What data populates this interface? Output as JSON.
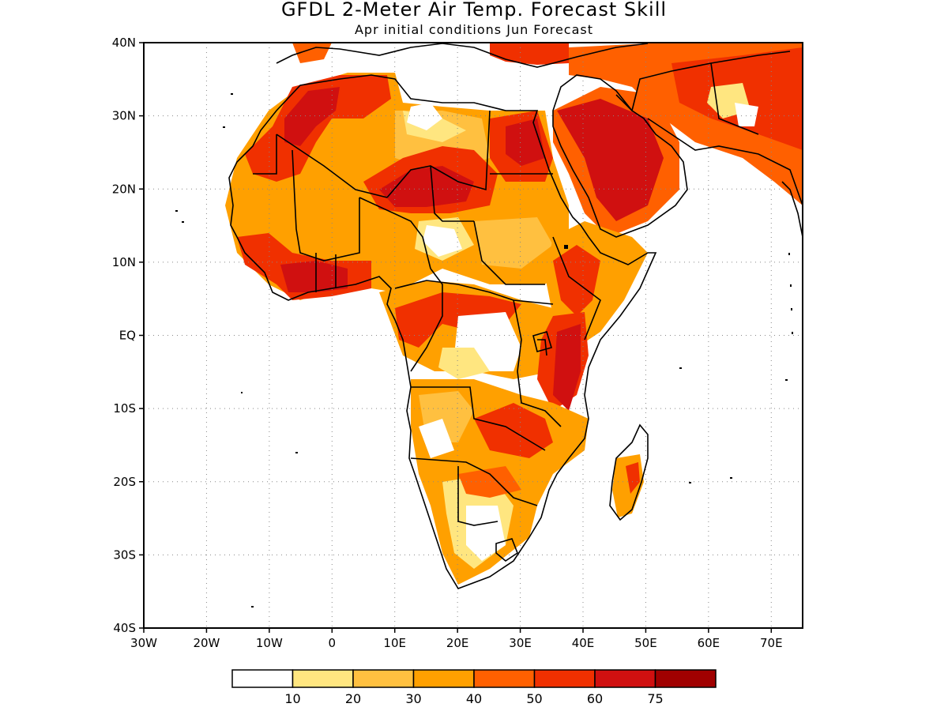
{
  "title": "GFDL 2-Meter Air Temp. Forecast Skill",
  "subtitle": "Apr initial conditions  Jun Forecast",
  "map": {
    "projection": "lat-lon",
    "lon_range": [
      -30,
      75
    ],
    "lat_range": [
      -40,
      40
    ],
    "grid": "dotted",
    "y_ticks": [
      "40N",
      "30N",
      "20N",
      "10N",
      "EQ",
      "10S",
      "20S",
      "30S",
      "40S"
    ],
    "x_ticks": [
      "30W",
      "20W",
      "10W",
      "0",
      "10E",
      "20E",
      "30E",
      "40E",
      "50E",
      "60E",
      "70E"
    ]
  },
  "colorbar": {
    "labels": [
      "10",
      "20",
      "30",
      "40",
      "50",
      "60",
      "75"
    ],
    "colors": [
      "#ffffff",
      "#ffe680",
      "#ffc040",
      "#ffa000",
      "#ff6000",
      "#f03000",
      "#d01010",
      "#a00000"
    ]
  }
}
